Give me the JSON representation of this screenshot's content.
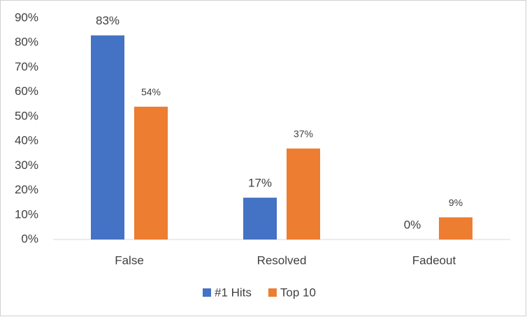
{
  "chart_data": {
    "type": "bar",
    "categories": [
      "False",
      "Resolved",
      "Fadeout"
    ],
    "series": [
      {
        "name": "#1 Hits",
        "color": "#4472c4",
        "values": [
          83,
          17,
          0
        ],
        "value_labels": [
          "83%",
          "17%",
          "0%"
        ]
      },
      {
        "name": "Top 10",
        "color": "#ed7d31",
        "values": [
          54,
          37,
          9
        ],
        "value_labels": [
          "54%",
          "37%",
          "9%"
        ]
      }
    ],
    "ylim": [
      0,
      90
    ],
    "yticks": [
      {
        "value": 0,
        "label": "0%"
      },
      {
        "value": 10,
        "label": "10%"
      },
      {
        "value": 20,
        "label": "20%"
      },
      {
        "value": 30,
        "label": "30%"
      },
      {
        "value": 40,
        "label": "40%"
      },
      {
        "value": 50,
        "label": "50%"
      },
      {
        "value": 60,
        "label": "60%"
      },
      {
        "value": 70,
        "label": "70%"
      },
      {
        "value": 80,
        "label": "80%"
      },
      {
        "value": 90,
        "label": "90%"
      }
    ],
    "grid": false,
    "legend": "bottom"
  }
}
